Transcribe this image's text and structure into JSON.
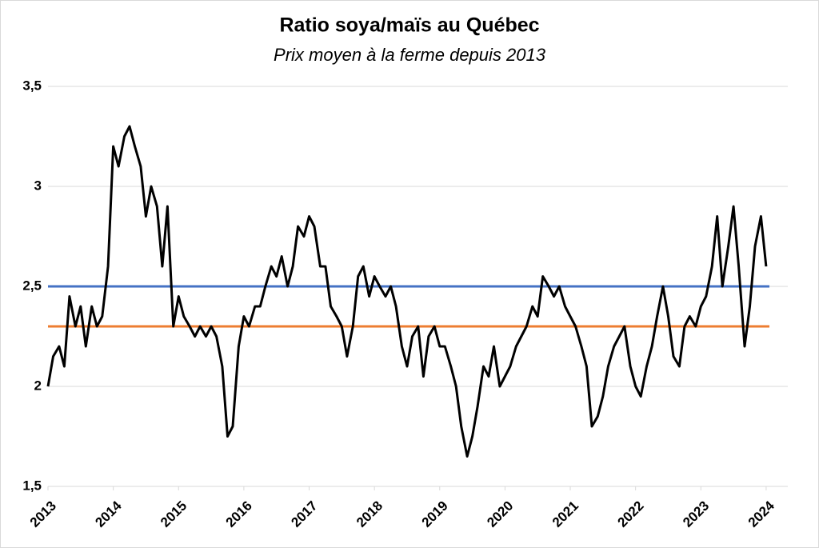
{
  "chart_data": {
    "type": "line",
    "title": "Ratio soya/maïs au Québec",
    "subtitle": "Prix moyen à la ferme depuis 2013",
    "xlim": [
      2013,
      2024.05
    ],
    "xticks": [
      2013,
      2014,
      2015,
      2016,
      2017,
      2018,
      2019,
      2020,
      2021,
      2022,
      2023,
      2024
    ],
    "ylim": [
      1.5,
      3.5
    ],
    "yticks": [
      {
        "value": 1.5,
        "label": "1,5"
      },
      2,
      {
        "value": 2.5,
        "label": "2,5"
      },
      3,
      {
        "value": 3.5,
        "label": "3,5"
      }
    ],
    "grid": true,
    "reference_lines": [
      {
        "value": 2.5,
        "color": "#4472c4"
      },
      {
        "value": 2.3,
        "color": "#ed7d31"
      }
    ],
    "series": [
      {
        "color": "#000000",
        "x": [
          2013.0,
          2013.08,
          2013.17,
          2013.25,
          2013.33,
          2013.42,
          2013.5,
          2013.58,
          2013.67,
          2013.75,
          2013.83,
          2013.92,
          2014.0,
          2014.08,
          2014.17,
          2014.25,
          2014.33,
          2014.42,
          2014.5,
          2014.58,
          2014.67,
          2014.75,
          2014.83,
          2014.92,
          2015.0,
          2015.08,
          2015.17,
          2015.25,
          2015.33,
          2015.42,
          2015.5,
          2015.58,
          2015.67,
          2015.75,
          2015.83,
          2015.92,
          2016.0,
          2016.08,
          2016.17,
          2016.25,
          2016.33,
          2016.42,
          2016.5,
          2016.58,
          2016.67,
          2016.75,
          2016.83,
          2016.92,
          2017.0,
          2017.08,
          2017.17,
          2017.25,
          2017.33,
          2017.42,
          2017.5,
          2017.58,
          2017.67,
          2017.75,
          2017.83,
          2017.92,
          2018.0,
          2018.08,
          2018.17,
          2018.25,
          2018.33,
          2018.42,
          2018.5,
          2018.58,
          2018.67,
          2018.75,
          2018.83,
          2018.92,
          2019.0,
          2019.08,
          2019.17,
          2019.25,
          2019.33,
          2019.42,
          2019.5,
          2019.58,
          2019.67,
          2019.75,
          2019.83,
          2019.92,
          2020.0,
          2020.08,
          2020.17,
          2020.25,
          2020.33,
          2020.42,
          2020.5,
          2020.58,
          2020.67,
          2020.75,
          2020.83,
          2020.92,
          2021.0,
          2021.08,
          2021.17,
          2021.25,
          2021.33,
          2021.42,
          2021.5,
          2021.58,
          2021.67,
          2021.75,
          2021.83,
          2021.92,
          2022.0,
          2022.08,
          2022.17,
          2022.25,
          2022.33,
          2022.42,
          2022.5,
          2022.58,
          2022.67,
          2022.75,
          2022.83,
          2022.92,
          2023.0,
          2023.08,
          2023.17,
          2023.25,
          2023.33,
          2023.42,
          2023.5,
          2023.58,
          2023.67,
          2023.75,
          2023.83,
          2023.92,
          2024.0
        ],
        "values": [
          2.0,
          2.15,
          2.2,
          2.1,
          2.45,
          2.3,
          2.4,
          2.2,
          2.4,
          2.3,
          2.35,
          2.6,
          3.2,
          3.1,
          3.25,
          3.3,
          3.2,
          3.1,
          2.85,
          3.0,
          2.9,
          2.6,
          2.9,
          2.3,
          2.45,
          2.35,
          2.3,
          2.25,
          2.3,
          2.25,
          2.3,
          2.25,
          2.1,
          1.75,
          1.8,
          2.2,
          2.35,
          2.3,
          2.4,
          2.4,
          2.5,
          2.6,
          2.55,
          2.65,
          2.5,
          2.6,
          2.8,
          2.75,
          2.85,
          2.8,
          2.6,
          2.6,
          2.4,
          2.35,
          2.3,
          2.15,
          2.3,
          2.55,
          2.6,
          2.45,
          2.55,
          2.5,
          2.45,
          2.5,
          2.4,
          2.2,
          2.1,
          2.25,
          2.3,
          2.05,
          2.25,
          2.3,
          2.2,
          2.2,
          2.1,
          2.0,
          1.8,
          1.65,
          1.75,
          1.9,
          2.1,
          2.05,
          2.2,
          2.0,
          2.05,
          2.1,
          2.2,
          2.25,
          2.3,
          2.4,
          2.35,
          2.55,
          2.5,
          2.45,
          2.5,
          2.4,
          2.35,
          2.3,
          2.2,
          2.1,
          1.8,
          1.85,
          1.95,
          2.1,
          2.2,
          2.25,
          2.3,
          2.1,
          2.0,
          1.95,
          2.1,
          2.2,
          2.35,
          2.5,
          2.35,
          2.15,
          2.1,
          2.3,
          2.35,
          2.3,
          2.4,
          2.45,
          2.6,
          2.85,
          2.5,
          2.7,
          2.9,
          2.6,
          2.2,
          2.4,
          2.7,
          2.85,
          2.6
        ]
      }
    ]
  }
}
